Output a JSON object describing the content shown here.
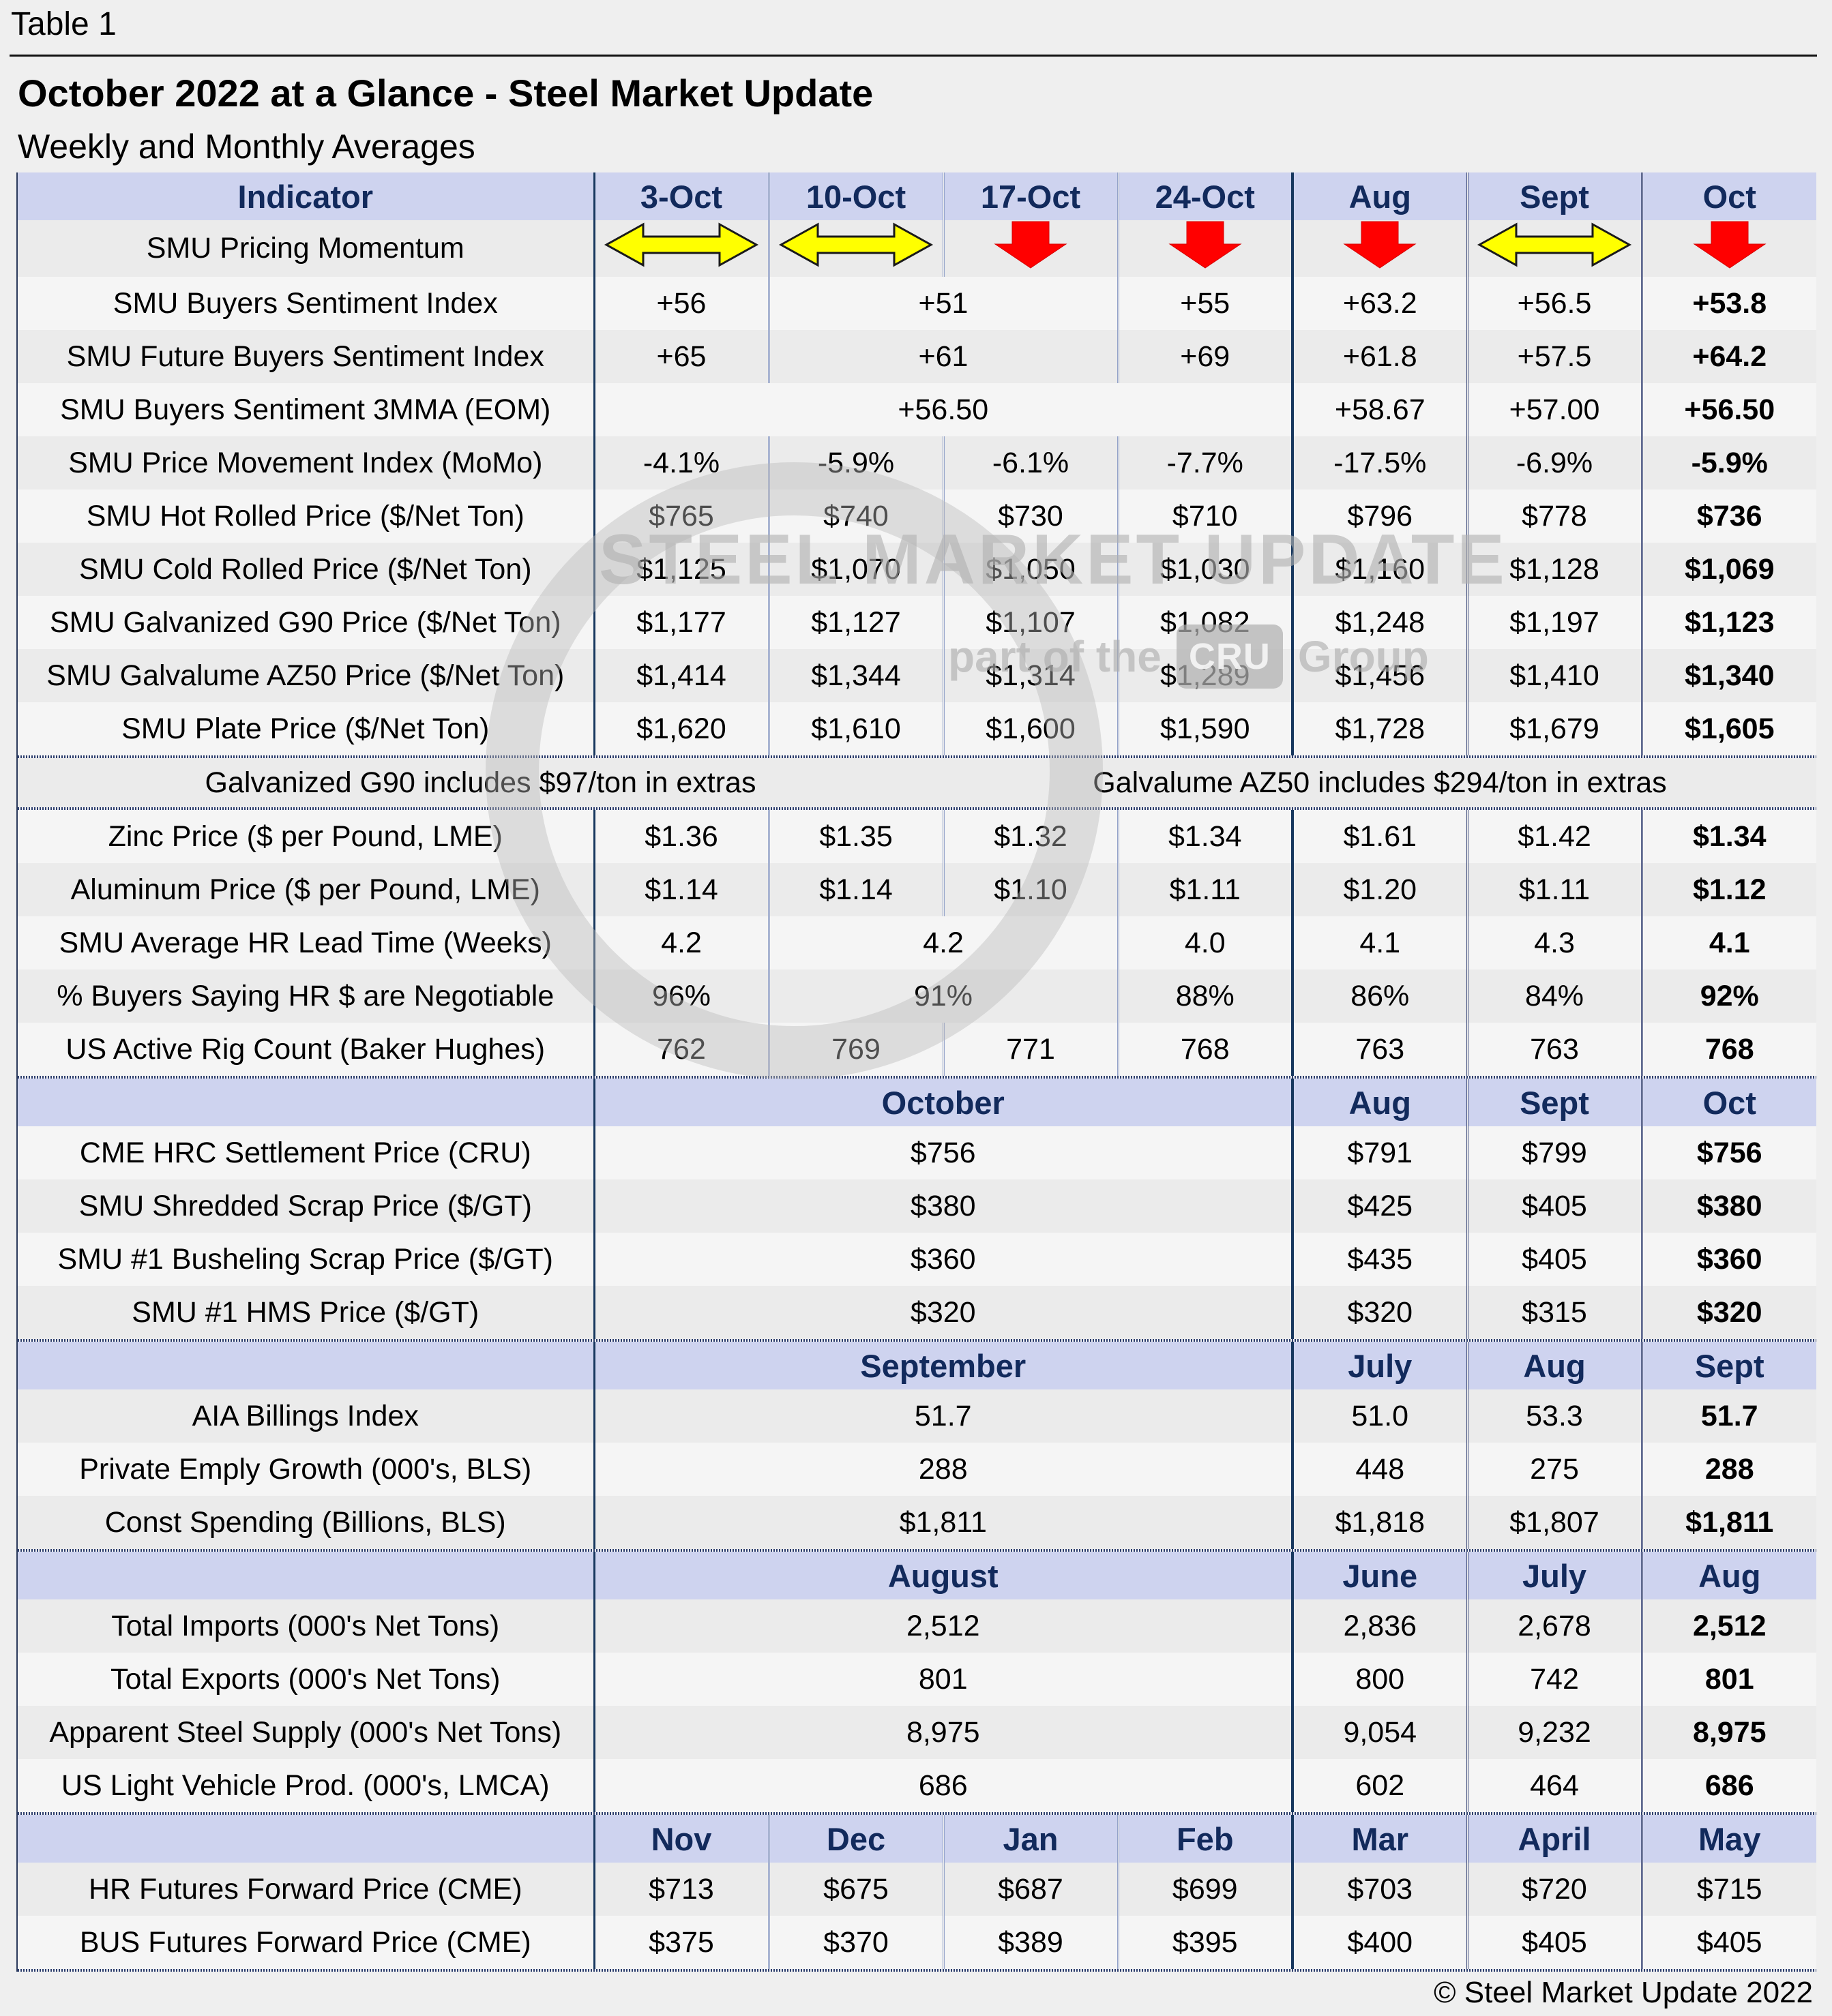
{
  "page": {
    "table_label": "Table 1",
    "title": "October 2022 at a Glance - Steel Market Update",
    "subtitle": "Weekly and Monthly Averages",
    "footer": "© Steel Market Update 2022"
  },
  "watermark": {
    "line1": "STEEL MARKET UPDATE",
    "line2_prefix": "part of the",
    "line2_box": "CRU",
    "line2_suffix": "Group",
    "ring_icon": "circle-ring-icon"
  },
  "colors": {
    "page_bg": "#efefef",
    "header_bg": "#ced3ef",
    "header_text": "#122a5c",
    "stripe_a": "#ebebeb",
    "stripe_b": "#f5f5f5",
    "momentum_flat": "#ffff00",
    "momentum_down": "#ff0000",
    "group_line": "#17375e"
  },
  "icons": {
    "flat": "momentum-flat-icon",
    "down": "momentum-down-icon"
  },
  "sections": [
    {
      "name": "weekly-top",
      "header": {
        "cells": [
          {
            "t": "Indicator",
            "span": 1
          },
          {
            "t": "3-Oct"
          },
          {
            "t": "10-Oct"
          },
          {
            "t": "17-Oct"
          },
          {
            "t": "24-Oct"
          },
          {
            "t": "Aug"
          },
          {
            "t": "Sept"
          },
          {
            "t": "Oct"
          }
        ]
      },
      "rows": [
        {
          "label": "SMU Pricing Momentum",
          "shade": "a",
          "cells": [
            {
              "icon": "flat"
            },
            {
              "icon": "flat"
            },
            {
              "icon": "down"
            },
            {
              "icon": "down"
            },
            {
              "icon": "down"
            },
            {
              "icon": "flat"
            },
            {
              "icon": "down"
            }
          ]
        },
        {
          "label": "SMU Buyers Sentiment Index",
          "shade": "b",
          "cells": [
            {
              "t": "+56"
            },
            {
              "t": "+51",
              "span": 2
            },
            {
              "t": "+55"
            },
            {
              "t": "+63.2"
            },
            {
              "t": "+56.5"
            },
            {
              "t": "+53.8",
              "bold": true
            }
          ]
        },
        {
          "label": "SMU Future Buyers Sentiment Index",
          "shade": "a",
          "cells": [
            {
              "t": "+65"
            },
            {
              "t": "+61",
              "span": 2
            },
            {
              "t": "+69"
            },
            {
              "t": "+61.8"
            },
            {
              "t": "+57.5"
            },
            {
              "t": "+64.2",
              "bold": true
            }
          ]
        },
        {
          "label": "SMU Buyers Sentiment 3MMA (EOM)",
          "shade": "b",
          "cells": [
            {
              "t": "+56.50",
              "span": 4
            },
            {
              "t": "+58.67"
            },
            {
              "t": "+57.00"
            },
            {
              "t": "+56.50",
              "bold": true
            }
          ]
        },
        {
          "label": "SMU Price Movement Index (MoMo)",
          "shade": "a",
          "cells": [
            {
              "t": "-4.1%"
            },
            {
              "t": "-5.9%"
            },
            {
              "t": "-6.1%"
            },
            {
              "t": "-7.7%"
            },
            {
              "t": "-17.5%"
            },
            {
              "t": "-6.9%"
            },
            {
              "t": "-5.9%",
              "bold": true
            }
          ]
        },
        {
          "label": "SMU Hot Rolled Price ($/Net Ton)",
          "shade": "b",
          "cells": [
            {
              "t": "$765"
            },
            {
              "t": "$740"
            },
            {
              "t": "$730"
            },
            {
              "t": "$710"
            },
            {
              "t": "$796"
            },
            {
              "t": "$778"
            },
            {
              "t": "$736",
              "bold": true
            }
          ]
        },
        {
          "label": "SMU Cold Rolled Price ($/Net Ton)",
          "shade": "a",
          "cells": [
            {
              "t": "$1,125"
            },
            {
              "t": "$1,070"
            },
            {
              "t": "$1,050"
            },
            {
              "t": "$1,030"
            },
            {
              "t": "$1,160"
            },
            {
              "t": "$1,128"
            },
            {
              "t": "$1,069",
              "bold": true
            }
          ]
        },
        {
          "label": "SMU Galvanized G90 Price ($/Net Ton)",
          "shade": "b",
          "cells": [
            {
              "t": "$1,177"
            },
            {
              "t": "$1,127"
            },
            {
              "t": "$1,107"
            },
            {
              "t": "$1,082"
            },
            {
              "t": "$1,248"
            },
            {
              "t": "$1,197"
            },
            {
              "t": "$1,123",
              "bold": true
            }
          ]
        },
        {
          "label": "SMU Galvalume AZ50 Price ($/Net Ton)",
          "shade": "a",
          "cells": [
            {
              "t": "$1,414"
            },
            {
              "t": "$1,344"
            },
            {
              "t": "$1,314"
            },
            {
              "t": "$1,289"
            },
            {
              "t": "$1,456"
            },
            {
              "t": "$1,410"
            },
            {
              "t": "$1,340",
              "bold": true
            }
          ]
        },
        {
          "label": "SMU Plate Price ($/Net Ton)",
          "shade": "b",
          "cells": [
            {
              "t": "$1,620"
            },
            {
              "t": "$1,610"
            },
            {
              "t": "$1,600"
            },
            {
              "t": "$1,590"
            },
            {
              "t": "$1,728"
            },
            {
              "t": "$1,679"
            },
            {
              "t": "$1,605",
              "bold": true
            }
          ]
        }
      ]
    },
    {
      "name": "extras-note",
      "hatch_before": true,
      "hatch_after": true,
      "note_row": {
        "shade": "a",
        "cells": [
          {
            "t": "Galvanized G90 includes $97/ton in extras",
            "span": 3,
            "with_label_col": true
          },
          {
            "t": "Galvalume AZ50 includes $294/ton in extras",
            "span": 5
          }
        ]
      }
    },
    {
      "name": "weekly-commodities",
      "rows": [
        {
          "label": "Zinc Price ($ per Pound, LME)",
          "shade": "b",
          "cells": [
            {
              "t": "$1.36"
            },
            {
              "t": "$1.35"
            },
            {
              "t": "$1.32"
            },
            {
              "t": "$1.34"
            },
            {
              "t": "$1.61"
            },
            {
              "t": "$1.42"
            },
            {
              "t": "$1.34",
              "bold": true
            }
          ]
        },
        {
          "label": "Aluminum Price ($ per Pound, LME)",
          "shade": "a",
          "cells": [
            {
              "t": "$1.14"
            },
            {
              "t": "$1.14"
            },
            {
              "t": "$1.10"
            },
            {
              "t": "$1.11"
            },
            {
              "t": "$1.20"
            },
            {
              "t": "$1.11"
            },
            {
              "t": "$1.12",
              "bold": true
            }
          ]
        },
        {
          "label": "SMU Average HR Lead Time (Weeks)",
          "shade": "b",
          "cells": [
            {
              "t": "4.2"
            },
            {
              "t": "4.2",
              "span": 2
            },
            {
              "t": "4.0"
            },
            {
              "t": "4.1"
            },
            {
              "t": "4.3"
            },
            {
              "t": "4.1",
              "bold": true
            }
          ]
        },
        {
          "label": "% Buyers Saying HR $ are Negotiable",
          "shade": "a",
          "cells": [
            {
              "t": "96%"
            },
            {
              "t": "91%",
              "span": 2
            },
            {
              "t": "88%"
            },
            {
              "t": "86%"
            },
            {
              "t": "84%"
            },
            {
              "t": "92%",
              "bold": true
            }
          ]
        },
        {
          "label": "US Active Rig Count (Baker Hughes)",
          "shade": "b",
          "cells": [
            {
              "t": "762"
            },
            {
              "t": "769"
            },
            {
              "t": "771"
            },
            {
              "t": "768"
            },
            {
              "t": "763"
            },
            {
              "t": "763"
            },
            {
              "t": "768",
              "bold": true
            }
          ]
        }
      ]
    },
    {
      "name": "october-monthly",
      "hatch_before": true,
      "header": {
        "cells": [
          {
            "t": "",
            "span": 1
          },
          {
            "t": "October",
            "span": 4
          },
          {
            "t": "Aug"
          },
          {
            "t": "Sept"
          },
          {
            "t": "Oct"
          }
        ]
      },
      "rows": [
        {
          "label": "CME HRC Settlement Price (CRU)",
          "shade": "b",
          "cells": [
            {
              "t": "$756",
              "span": 4
            },
            {
              "t": "$791"
            },
            {
              "t": "$799"
            },
            {
              "t": "$756",
              "bold": true
            }
          ]
        },
        {
          "label": "SMU Shredded Scrap Price ($/GT)",
          "shade": "a",
          "cells": [
            {
              "t": "$380",
              "span": 4
            },
            {
              "t": "$425"
            },
            {
              "t": "$405"
            },
            {
              "t": "$380",
              "bold": true
            }
          ]
        },
        {
          "label": "SMU #1 Busheling Scrap Price ($/GT)",
          "shade": "b",
          "cells": [
            {
              "t": "$360",
              "span": 4
            },
            {
              "t": "$435"
            },
            {
              "t": "$405"
            },
            {
              "t": "$360",
              "bold": true
            }
          ]
        },
        {
          "label": "SMU #1 HMS Price ($/GT)",
          "shade": "a",
          "cells": [
            {
              "t": "$320",
              "span": 4
            },
            {
              "t": "$320"
            },
            {
              "t": "$315"
            },
            {
              "t": "$320",
              "bold": true
            }
          ]
        }
      ]
    },
    {
      "name": "september-monthly",
      "hatch_before": true,
      "header": {
        "cells": [
          {
            "t": "",
            "span": 1
          },
          {
            "t": "September",
            "span": 4
          },
          {
            "t": "July"
          },
          {
            "t": "Aug"
          },
          {
            "t": "Sept"
          }
        ]
      },
      "rows": [
        {
          "label": "AIA Billings Index",
          "shade": "a",
          "cells": [
            {
              "t": "51.7",
              "span": 4
            },
            {
              "t": "51.0"
            },
            {
              "t": "53.3"
            },
            {
              "t": "51.7",
              "bold": true
            }
          ]
        },
        {
          "label": "Private Emply Growth (000's, BLS)",
          "shade": "b",
          "cells": [
            {
              "t": "288",
              "span": 4
            },
            {
              "t": "448"
            },
            {
              "t": "275"
            },
            {
              "t": "288",
              "bold": true
            }
          ]
        },
        {
          "label": "Const Spending (Billions, BLS)",
          "shade": "a",
          "cells": [
            {
              "t": "$1,811",
              "span": 4
            },
            {
              "t": "$1,818"
            },
            {
              "t": "$1,807"
            },
            {
              "t": "$1,811",
              "bold": true
            }
          ]
        }
      ]
    },
    {
      "name": "august-monthly",
      "hatch_before": true,
      "header": {
        "cells": [
          {
            "t": "",
            "span": 1
          },
          {
            "t": "August",
            "span": 4
          },
          {
            "t": "June"
          },
          {
            "t": "July"
          },
          {
            "t": "Aug"
          }
        ]
      },
      "rows": [
        {
          "label": "Total Imports (000's Net Tons)",
          "shade": "a",
          "cells": [
            {
              "t": "2,512",
              "span": 4
            },
            {
              "t": "2,836"
            },
            {
              "t": "2,678"
            },
            {
              "t": "2,512",
              "bold": true
            }
          ]
        },
        {
          "label": "Total Exports (000's Net Tons)",
          "shade": "b",
          "cells": [
            {
              "t": "801",
              "span": 4
            },
            {
              "t": "800"
            },
            {
              "t": "742"
            },
            {
              "t": "801",
              "bold": true
            }
          ]
        },
        {
          "label": "Apparent Steel Supply (000's Net Tons)",
          "shade": "a",
          "cells": [
            {
              "t": "8,975",
              "span": 4
            },
            {
              "t": "9,054"
            },
            {
              "t": "9,232"
            },
            {
              "t": "8,975",
              "bold": true
            }
          ]
        },
        {
          "label": "US Light Vehicle Prod. (000's, LMCA)",
          "shade": "b",
          "cells": [
            {
              "t": "686",
              "span": 4
            },
            {
              "t": "602"
            },
            {
              "t": "464"
            },
            {
              "t": "686",
              "bold": true
            }
          ]
        }
      ]
    },
    {
      "name": "futures",
      "hatch_before": true,
      "hatch_after": true,
      "header": {
        "cells": [
          {
            "t": "",
            "span": 1
          },
          {
            "t": "Nov"
          },
          {
            "t": "Dec"
          },
          {
            "t": "Jan"
          },
          {
            "t": "Feb"
          },
          {
            "t": "Mar"
          },
          {
            "t": "April"
          },
          {
            "t": "May"
          }
        ]
      },
      "rows": [
        {
          "label": "HR Futures Forward Price (CME)",
          "shade": "a",
          "cells": [
            {
              "t": "$713"
            },
            {
              "t": "$675"
            },
            {
              "t": "$687"
            },
            {
              "t": "$699"
            },
            {
              "t": "$703"
            },
            {
              "t": "$720"
            },
            {
              "t": "$715"
            }
          ]
        },
        {
          "label": "BUS Futures Forward Price (CME)",
          "shade": "b",
          "cells": [
            {
              "t": "$375"
            },
            {
              "t": "$370"
            },
            {
              "t": "$389"
            },
            {
              "t": "$395"
            },
            {
              "t": "$400"
            },
            {
              "t": "$405"
            },
            {
              "t": "$405"
            }
          ]
        }
      ]
    }
  ]
}
